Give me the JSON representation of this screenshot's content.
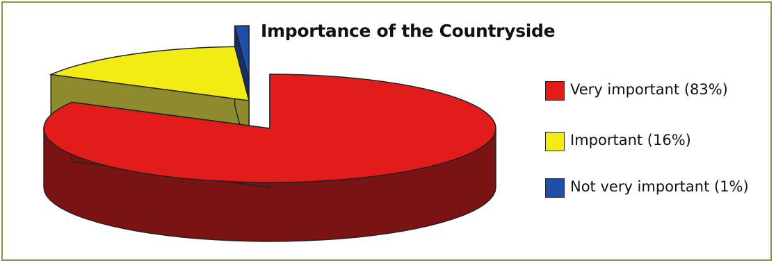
{
  "chart_data": {
    "type": "pie",
    "style": "3d-exploded",
    "title": "Importance of the Countryside",
    "categories": [
      "Very important",
      "Important",
      "Not very important"
    ],
    "values": [
      83,
      16,
      1
    ],
    "unit": "%",
    "colors": [
      "#e21b1b",
      "#f2ec14",
      "#1f4fa8"
    ],
    "side_colors": [
      "#7a1414",
      "#8e8b2e",
      "#13306a"
    ],
    "legend": {
      "placement": "right",
      "entries": [
        {
          "label": "Very important (83%)",
          "color": "#e21b1b"
        },
        {
          "label": "Important (16%)",
          "color": "#f2ec14"
        },
        {
          "label": "Not very important (1%)",
          "color": "#1f4fa8"
        }
      ]
    }
  }
}
